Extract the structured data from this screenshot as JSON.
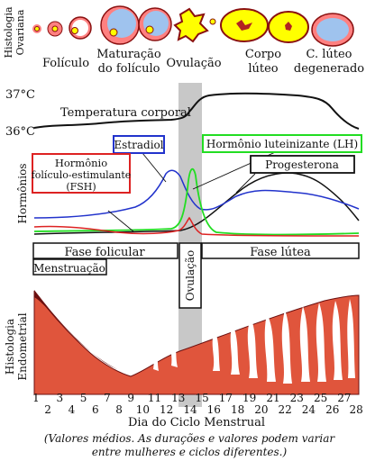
{
  "histology_ovarian": {
    "label_line1": "Histologia",
    "label_line2": "Ovariana",
    "stages": {
      "follicle": "Folículo",
      "maturation_line1": "Maturação",
      "maturation_line2": "do folículo",
      "ovulation": "Ovulação",
      "corpus_luteum_line1": "Corpo",
      "corpus_luteum_line2": "lúteo",
      "degenerate_line1": "C. lúteo",
      "degenerate_line2": "degenerado"
    }
  },
  "temperature": {
    "high_tick": "37°C",
    "low_tick": "36°C",
    "label": "Temperatura corporal"
  },
  "hormones": {
    "axis_label": "Hormônios",
    "estradiol": "Estradiol",
    "lh": "Hormônio luteinizante (LH)",
    "progesterone": "Progesterona",
    "fsh_line1": "Hormônio",
    "fsh_line2": "folículo-estimulante",
    "fsh_line3": "(FSH)"
  },
  "phases": {
    "follicular": "Fase folicular",
    "luteal": "Fase lútea",
    "menstruation": "Menstruação",
    "ovulation": "Ovulação"
  },
  "endometrium": {
    "label_line1": "Histologia",
    "label_line2": "Endometrial"
  },
  "axis": {
    "days_odd": [
      "1",
      "3",
      "5",
      "7",
      "9",
      "11",
      "13",
      "15",
      "17",
      "19",
      "21",
      "23",
      "25",
      "27"
    ],
    "days_even": [
      "2",
      "4",
      "6",
      "8",
      "10",
      "12",
      "14",
      "16",
      "18",
      "20",
      "22",
      "24",
      "26",
      "28"
    ],
    "title": "Dia do Ciclo Menstrual"
  },
  "footnote": {
    "line1": "(Valores médios. As durações e valores podem variar",
    "line2": "entre mulheres e ciclos diferentes.)"
  },
  "colors": {
    "estradiol": "#2233cc",
    "lh": "#22dd22",
    "fsh": "#dd2222",
    "progesterone": "#111111",
    "endometrium": "#e0553c",
    "ovulation_band": "#c8c8c8",
    "follicle_yellow": "#ffff00",
    "follicle_pink": "#ff8080"
  }
}
